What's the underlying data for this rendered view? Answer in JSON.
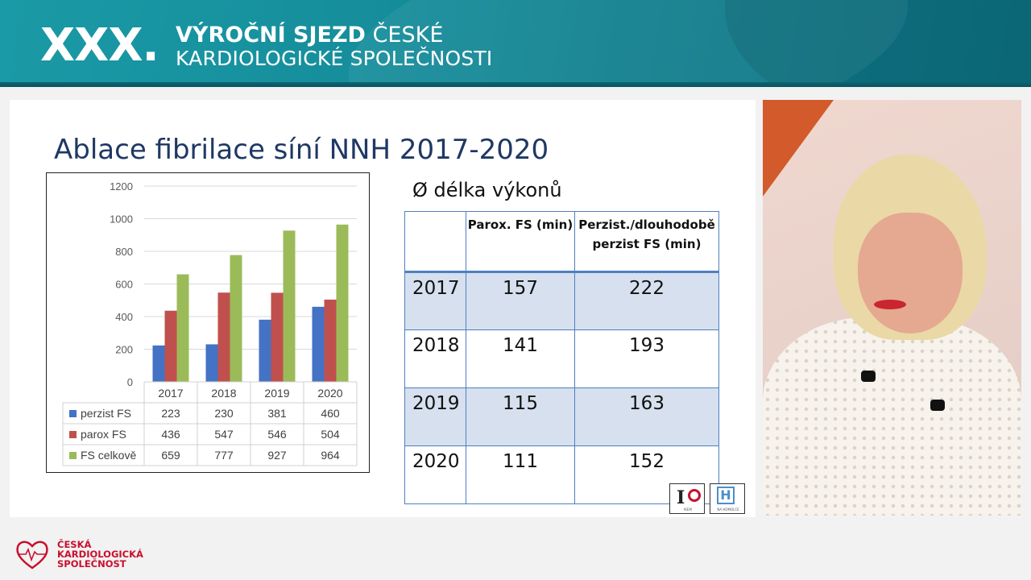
{
  "banner": {
    "number": "XXX.",
    "line1_bold": "VÝROČNÍ SJEZD",
    "line1_rest": "ČESKÉ",
    "line2": "KARDIOLOGICKÉ SPOLEČNOSTI"
  },
  "slide": {
    "title": "Ablace fibrilace síní NNH 2017-2020"
  },
  "chart_data": {
    "type": "bar",
    "categories": [
      "2017",
      "2018",
      "2019",
      "2020"
    ],
    "series": [
      {
        "name": "perzist FS",
        "values": [
          223,
          230,
          381,
          460
        ],
        "color": "#4472c4"
      },
      {
        "name": "parox FS",
        "values": [
          436,
          547,
          546,
          504
        ],
        "color": "#c0504d"
      },
      {
        "name": "FS celkově",
        "values": [
          659,
          777,
          927,
          964
        ],
        "color": "#9bbb59"
      }
    ],
    "yticks": [
      "0",
      "200",
      "400",
      "600",
      "800",
      "1000",
      "1200"
    ],
    "ylim": [
      0,
      1200
    ],
    "grid": true,
    "legend": "data table below chart"
  },
  "duration_table": {
    "title": "Ø délka výkonů",
    "headers": [
      "",
      "Parox. FS (min)",
      "Perzist./dlouhodobě perzist FS (min)"
    ],
    "rows": [
      [
        "2017",
        "157",
        "222"
      ],
      [
        "2018",
        "141",
        "193"
      ],
      [
        "2019",
        "115",
        "163"
      ],
      [
        "2020",
        "111",
        "152"
      ]
    ]
  },
  "logos": {
    "ikem": "IKEM",
    "nh_letter": "H",
    "nh_sub": "NA HOMOLCE"
  },
  "footer": {
    "line1": "ČESKÁ",
    "line2": "KARDIOLOGICKÁ",
    "line3": "SPOLEČNOST"
  }
}
